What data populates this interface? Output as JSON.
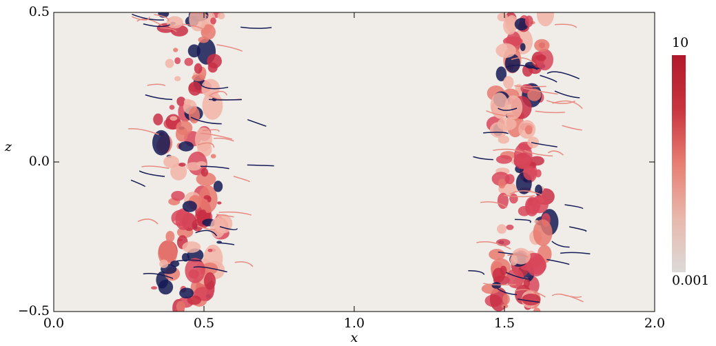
{
  "chart_data": {
    "type": "heatmap",
    "xlabel": "x",
    "ylabel": "z",
    "xlim": [
      0,
      2
    ],
    "xticks": [
      {
        "value": 0,
        "label": "0.0"
      },
      {
        "value": 0.5,
        "label": "0.5"
      },
      {
        "value": 1,
        "label": "1.0"
      },
      {
        "value": 1.5,
        "label": "1.5"
      },
      {
        "value": 2,
        "label": "2.0"
      }
    ],
    "ylim": [
      -0.5,
      0.5
    ],
    "yticks": [
      {
        "value": -0.5,
        "label": "−0.5"
      },
      {
        "value": 0,
        "label": "0.0"
      },
      {
        "value": 0.5,
        "label": "0.5"
      }
    ],
    "colorbar": {
      "scale": "log",
      "lim": [
        0.001,
        10
      ],
      "ticks": [
        10,
        0.001
      ],
      "colors": [
        "#dcdad8",
        "#e8b8ab",
        "#e87f73",
        "#c8343e",
        "#b2182b"
      ]
    }
  }
}
